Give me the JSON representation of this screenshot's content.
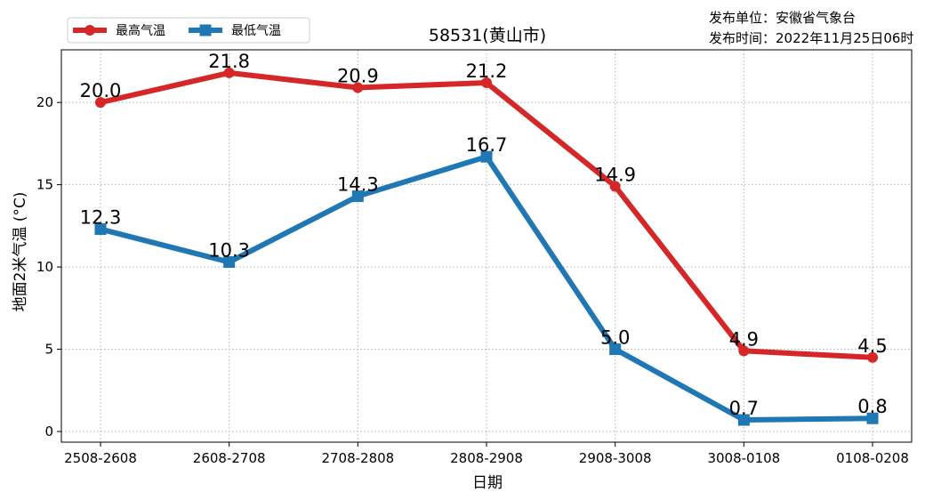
{
  "chart_data": {
    "type": "line",
    "title": "58531(黄山市)",
    "publisher_label": "发布单位：安徽省气象台",
    "publish_time_label": "发布时间：2022年11月25日06时",
    "xlabel": "日期",
    "ylabel": "地面2米气温 (°C)",
    "categories": [
      "2508-2608",
      "2608-2708",
      "2708-2808",
      "2808-2908",
      "2908-3008",
      "3008-0108",
      "0108-0208"
    ],
    "yticks": [
      0,
      5,
      10,
      15,
      20
    ],
    "ylim": [
      -0.65,
      23.2
    ],
    "grid": true,
    "legend_position": "top-left",
    "series": [
      {
        "name": "最高气温",
        "color": "#d62728",
        "marker": "circle",
        "values": [
          20.0,
          21.8,
          20.9,
          21.2,
          14.9,
          4.9,
          4.5
        ],
        "labels": [
          "20.0",
          "21.8",
          "20.9",
          "21.2",
          "14.9",
          "4.9",
          "4.5"
        ]
      },
      {
        "name": "最低气温",
        "color": "#1f77b4",
        "marker": "square",
        "values": [
          12.3,
          10.3,
          14.3,
          16.7,
          5.0,
          0.7,
          0.8
        ],
        "labels": [
          "12.3",
          "10.3",
          "14.3",
          "16.7",
          "5.0",
          "0.7",
          "0.8"
        ]
      }
    ]
  }
}
